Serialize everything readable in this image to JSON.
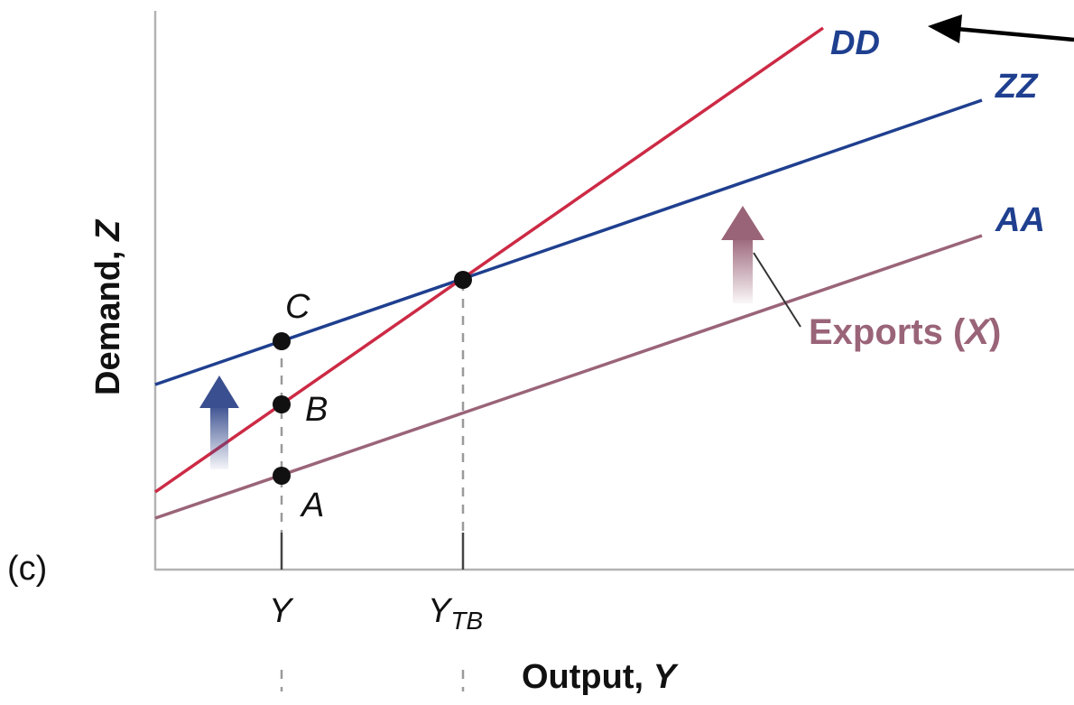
{
  "panel_label": "(c)",
  "axes": {
    "y_label_prefix": "Demand, ",
    "y_label_var": "Z",
    "x_label_prefix": "Output, ",
    "x_label_var": "Y"
  },
  "lines": [
    {
      "id": "dd",
      "label": "DD",
      "color": "#cc2a45"
    },
    {
      "id": "zz",
      "label": "ZZ",
      "color": "#1f3f8f"
    },
    {
      "id": "aa",
      "label": "AA",
      "color": "#9a6478"
    }
  ],
  "points": [
    {
      "id": "a",
      "label": "A"
    },
    {
      "id": "b",
      "label": "B"
    },
    {
      "id": "c",
      "label": "C"
    }
  ],
  "x_ticks": {
    "y": "Y",
    "ytb_main": "Y",
    "ytb_sub": "TB"
  },
  "annotation": {
    "prefix": "Exports (",
    "var": "X",
    "suffix": ")",
    "color": "#9a6478"
  },
  "colors": {
    "axis": "#b3b3b3",
    "dash": "#9a9a9a",
    "point": "#111111",
    "shift_arrow_blue": "#3a4f8f",
    "shift_arrow_mauve": "#9a6478",
    "pointer_arrow": "#000000"
  }
}
